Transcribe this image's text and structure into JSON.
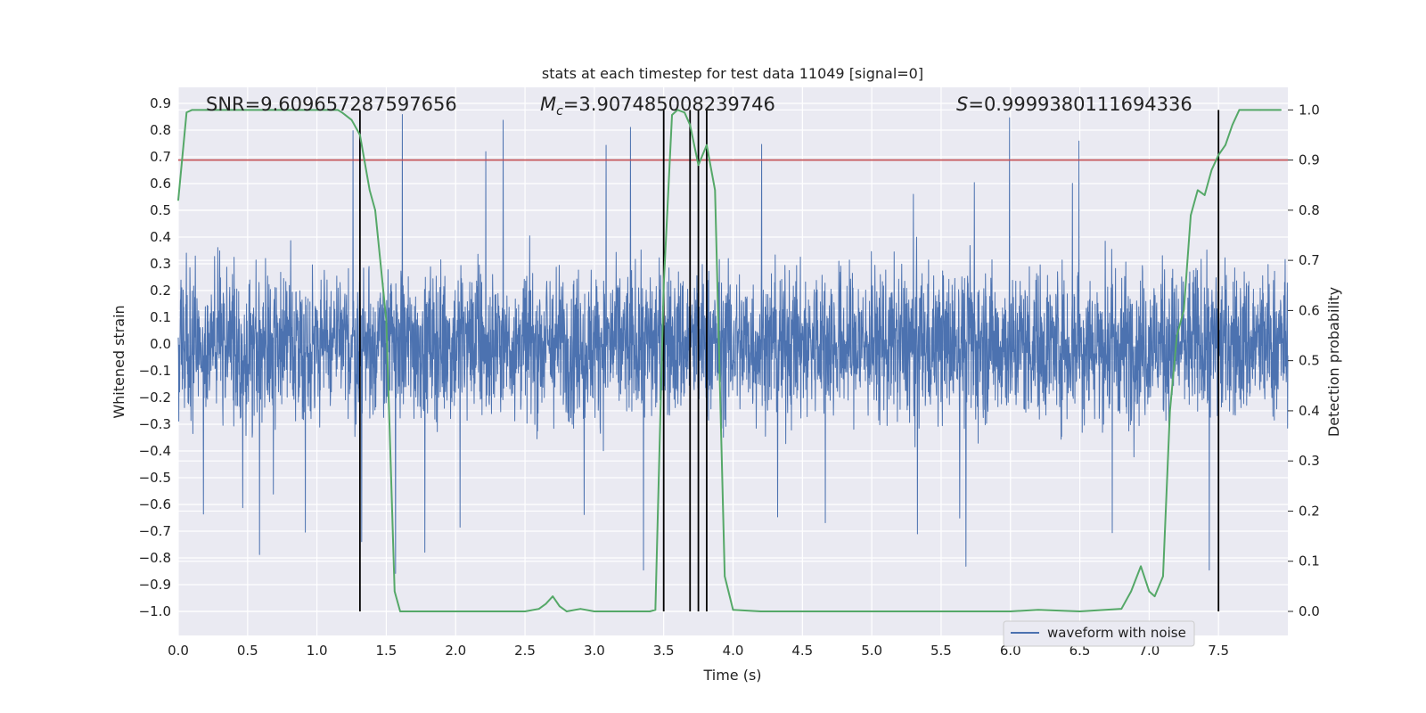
{
  "chart_data": {
    "type": "line",
    "title": "stats at each timestep for test data 11049 [signal=0]",
    "xlabel": "Time (s)",
    "ylabel_left": "Whitened strain",
    "ylabel_right": "Detection probability",
    "xlim": [
      0.0,
      8.0
    ],
    "ylim_left": [
      -1.09,
      0.96
    ],
    "ylim_right": [
      -0.048,
      1.045
    ],
    "x_ticks": [
      "0.0",
      "0.5",
      "1.0",
      "1.5",
      "2.0",
      "2.5",
      "3.0",
      "3.5",
      "4.0",
      "4.5",
      "5.0",
      "5.5",
      "6.0",
      "6.5",
      "7.0",
      "7.5"
    ],
    "y_ticks_left": [
      "0.9",
      "0.8",
      "0.7",
      "0.6",
      "0.5",
      "0.4",
      "0.3",
      "0.2",
      "0.1",
      "0.0",
      "−0.1",
      "−0.2",
      "−0.3",
      "−0.4",
      "−0.5",
      "−0.6",
      "−0.7",
      "−0.8",
      "−0.9",
      "−1.0"
    ],
    "y_ticks_right": [
      "1.0",
      "0.9",
      "0.8",
      "0.7",
      "0.6",
      "0.5",
      "0.4",
      "0.3",
      "0.2",
      "0.1",
      "0.0"
    ],
    "annotations": {
      "snr_prefix": "SNR=",
      "snr_value": "9.609657287597656",
      "mc_symbol": "M",
      "mc_sub": "c",
      "mc_value": "=3.907485008239746",
      "s_symbol": "S",
      "s_value": "=0.9999380111694336"
    },
    "legend": {
      "placement": "bottom-right",
      "entries": [
        "waveform with noise"
      ]
    },
    "grid": true,
    "threshold_line": {
      "axis": "right",
      "value": 0.9,
      "color": "#c44e52"
    },
    "vertical_markers": [
      1.31,
      3.5,
      3.69,
      3.75,
      3.81,
      7.5
    ],
    "series": [
      {
        "name": "waveform with noise",
        "axis": "left",
        "color": "#4c72b0",
        "render": "dense_noise",
        "x_range": [
          0.0,
          8.0
        ],
        "samples": 4096,
        "approx_min": -1.0,
        "approx_max": 0.88
      },
      {
        "axis": "right",
        "color": "#55a868",
        "x": [
          0.0,
          0.06,
          0.1,
          0.2,
          0.4,
          0.6,
          0.8,
          1.0,
          1.15,
          1.18,
          1.25,
          1.31,
          1.38,
          1.42,
          1.5,
          1.56,
          1.6,
          1.8,
          2.0,
          2.5,
          2.6,
          2.65,
          2.7,
          2.75,
          2.8,
          2.9,
          3.0,
          3.2,
          3.4,
          3.44,
          3.5,
          3.56,
          3.6,
          3.65,
          3.69,
          3.75,
          3.81,
          3.87,
          3.94,
          4.0,
          4.2,
          4.5,
          5.0,
          5.5,
          6.0,
          6.2,
          6.5,
          6.8,
          6.87,
          6.94,
          7.0,
          7.04,
          7.1,
          7.15,
          7.2,
          7.25,
          7.3,
          7.35,
          7.4,
          7.45,
          7.5,
          7.55,
          7.6,
          7.65,
          7.8,
          7.95
        ],
        "values": [
          0.82,
          0.995,
          1.0,
          1.0,
          1.0,
          1.0,
          1.0,
          1.0,
          1.0,
          0.995,
          0.98,
          0.95,
          0.84,
          0.8,
          0.58,
          0.04,
          0.0,
          0.0,
          0.0,
          0.0,
          0.005,
          0.015,
          0.03,
          0.01,
          0.0,
          0.005,
          0.0,
          0.0,
          0.0,
          0.003,
          0.65,
          0.99,
          1.0,
          0.995,
          0.97,
          0.89,
          0.93,
          0.84,
          0.07,
          0.003,
          0.0,
          0.0,
          0.0,
          0.0,
          0.0,
          0.003,
          0.0,
          0.005,
          0.04,
          0.09,
          0.04,
          0.03,
          0.07,
          0.4,
          0.55,
          0.6,
          0.79,
          0.84,
          0.83,
          0.88,
          0.91,
          0.93,
          0.97,
          1.0,
          1.0,
          1.0
        ]
      }
    ]
  }
}
